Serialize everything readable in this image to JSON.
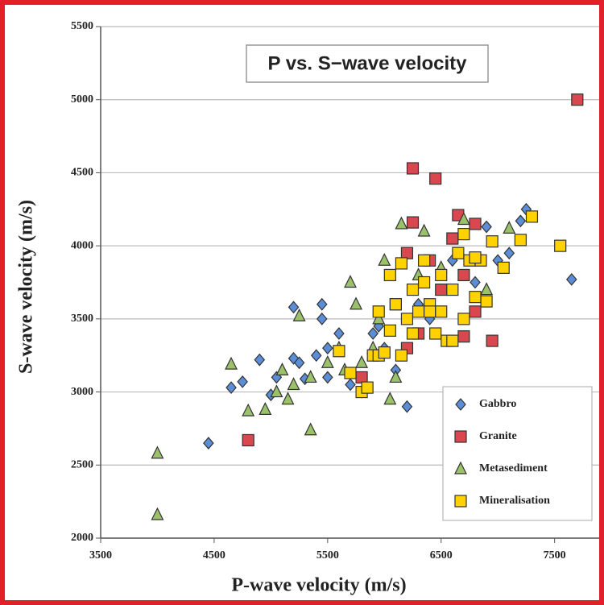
{
  "chart_data": {
    "type": "scatter",
    "title": "P vs. S−wave velocity",
    "x_label": "P-wave velocity (m/s)",
    "y_label": "S-wave velocity (m/s)",
    "xlim": [
      3500,
      7900
    ],
    "ylim": [
      2000,
      5500
    ],
    "xticks": [
      3500,
      4500,
      5500,
      6500,
      7500
    ],
    "yticks": [
      2000,
      2500,
      3000,
      3500,
      4000,
      4500,
      5000,
      5500
    ],
    "grid": true,
    "legend": "lower right",
    "series": [
      {
        "name": "Gabbro",
        "color": "#5b8ed6",
        "marker": "diamond",
        "x": [
          4450,
          4650,
          4750,
          4900,
          5000,
          5050,
          5200,
          5200,
          5250,
          5300,
          5400,
          5450,
          5450,
          5500,
          5500,
          5600,
          5700,
          5800,
          5900,
          6000,
          6100,
          6200,
          6800,
          6900,
          7000,
          7100,
          7200,
          7250,
          7650,
          6600,
          6400,
          6300,
          5950
        ],
        "values": [
          2650,
          3030,
          3070,
          3220,
          2980,
          3100,
          3580,
          3230,
          3200,
          3090,
          3250,
          3600,
          3500,
          3300,
          3100,
          3400,
          3050,
          3000,
          3400,
          3300,
          3150,
          2900,
          3750,
          4130,
          3900,
          3950,
          4170,
          4250,
          3770,
          3900,
          3500,
          3600,
          3450
        ]
      },
      {
        "name": "Granite",
        "color": "#d9474f",
        "marker": "square",
        "x": [
          4800,
          6250,
          6450,
          7700,
          6250,
          6650,
          6950,
          6700,
          6800,
          5800,
          6200,
          6300,
          6500,
          6600,
          6800,
          6400,
          6100,
          6700,
          6200
        ],
        "values": [
          2670,
          4530,
          4460,
          5000,
          4160,
          4210,
          3350,
          3380,
          3550,
          3100,
          3950,
          3400,
          3700,
          4050,
          4150,
          3900,
          3600,
          3800,
          3300
        ]
      },
      {
        "name": "Metasediment",
        "color": "#9bc26b",
        "marker": "triangle",
        "x": [
          4000,
          4000,
          4650,
          4800,
          4950,
          5050,
          5100,
          5150,
          5200,
          5250,
          5350,
          5350,
          5500,
          5600,
          5700,
          5750,
          5800,
          5900,
          6000,
          6050,
          6100,
          6150,
          6350,
          6700,
          7100,
          6900,
          6500,
          5950,
          6300,
          5650
        ],
        "values": [
          2580,
          2160,
          3190,
          2870,
          2880,
          3000,
          3150,
          2950,
          3050,
          3520,
          2740,
          3100,
          3200,
          3300,
          3750,
          3600,
          3200,
          3300,
          3900,
          2950,
          3100,
          4150,
          4100,
          4180,
          4120,
          3700,
          3850,
          3500,
          3800,
          3150
        ]
      },
      {
        "name": "Mineralisation",
        "color": "#ffd200",
        "marker": "square",
        "x": [
          5600,
          5700,
          5800,
          5850,
          5900,
          5950,
          6000,
          6050,
          6100,
          6150,
          6200,
          6250,
          6300,
          6350,
          6400,
          6450,
          6500,
          6550,
          6600,
          6650,
          6700,
          6750,
          6800,
          6850,
          6900,
          6950,
          7050,
          7200,
          7300,
          7550,
          6150,
          6250,
          6500,
          5950,
          6350,
          6600,
          6700,
          6050,
          6800,
          6400
        ],
        "values": [
          3280,
          3130,
          3000,
          3030,
          3250,
          3250,
          3270,
          3420,
          3600,
          3250,
          3500,
          3700,
          3550,
          3900,
          3600,
          3400,
          3800,
          3350,
          3700,
          3950,
          4080,
          3900,
          3650,
          3900,
          3620,
          4030,
          3850,
          4040,
          4200,
          4000,
          3880,
          3400,
          3550,
          3550,
          3750,
          3350,
          3500,
          3800,
          3920,
          3550
        ]
      }
    ]
  }
}
